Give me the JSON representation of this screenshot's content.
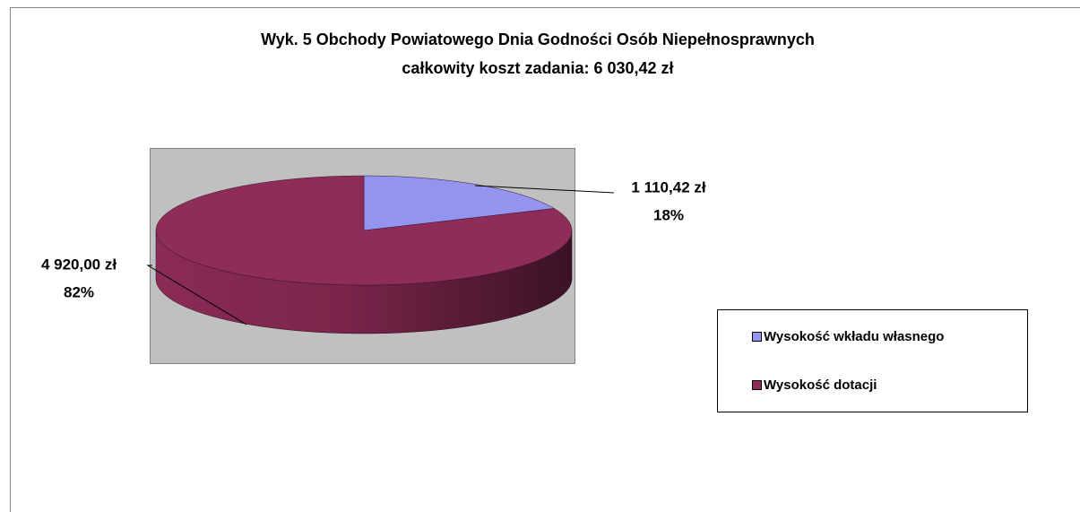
{
  "chart_data": {
    "type": "pie3d",
    "title": "Wyk. 5 Obchody Powiatowego Dnia Godności Osób Niepełnosprawnych",
    "subtitle": "całkowity koszt zadania: 6 030,42 zł",
    "categories": [
      "Wysokość wkładu własnego",
      "Wysokość dotacji"
    ],
    "values": [
      1110.42,
      4920.0
    ],
    "value_labels": [
      "1 110,42 zł",
      "4 920,00 zł"
    ],
    "percent_labels": [
      "18%",
      "82%"
    ],
    "colors": [
      "#9393f0",
      "#8e2d5a"
    ],
    "legend": "right"
  }
}
